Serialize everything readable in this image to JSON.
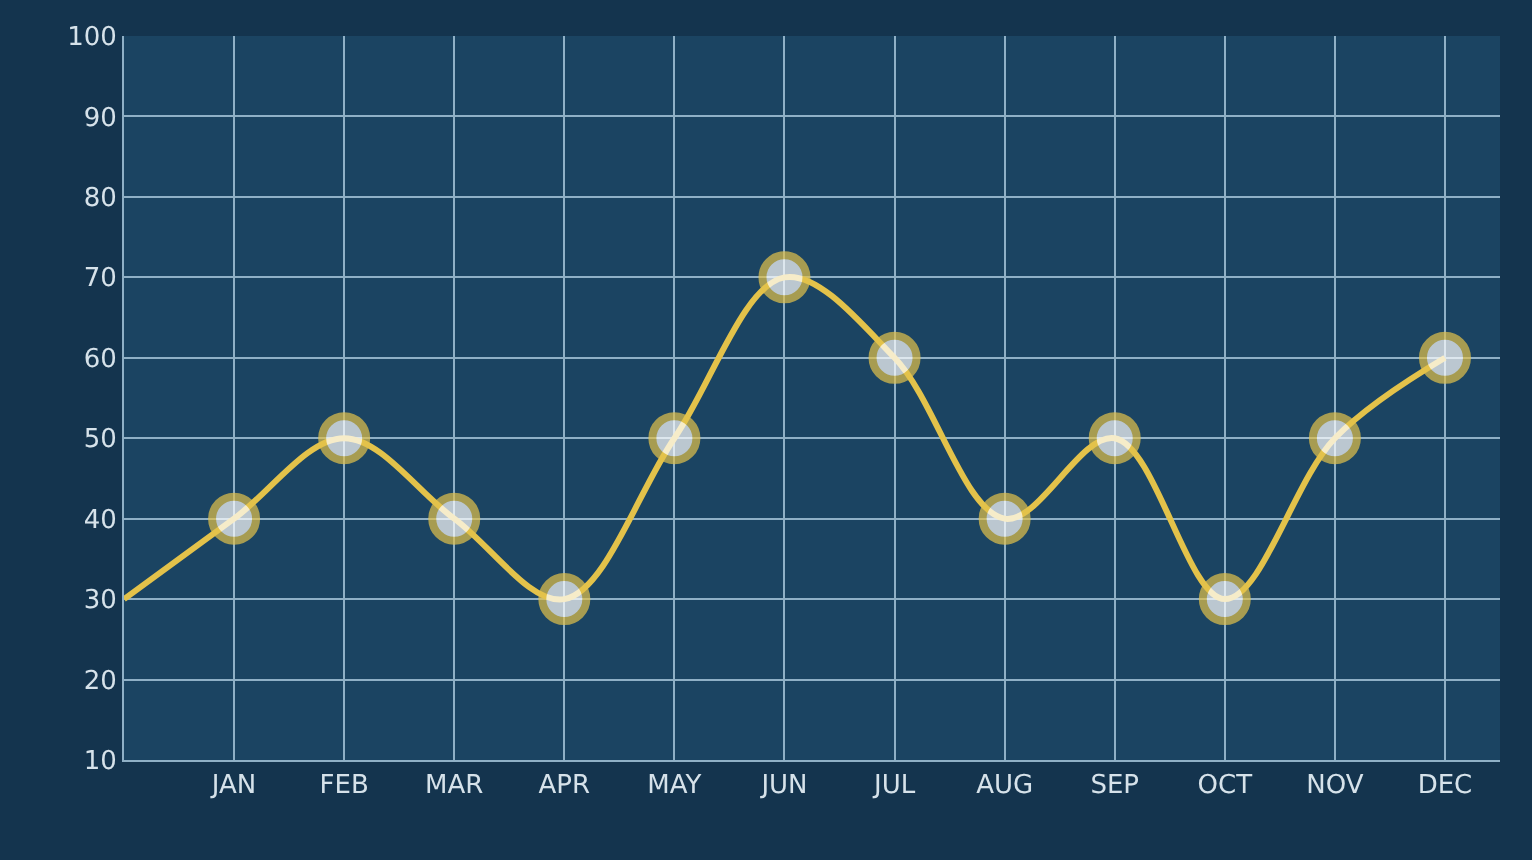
{
  "chart_data": {
    "type": "line",
    "categories": [
      null,
      "JAN",
      "FEB",
      "MAR",
      "APR",
      "MAY",
      "JUN",
      "JUL",
      "AUG",
      "SEP",
      "OCT",
      "NOV",
      "DEC"
    ],
    "series": [
      {
        "color": "#e3c24a",
        "values": [
          30,
          40,
          50,
          40,
          30,
          50,
          70,
          60,
          40,
          50,
          30,
          50,
          60
        ]
      }
    ],
    "ylim": [
      10,
      100
    ],
    "yticks": [
      10,
      20,
      30,
      40,
      50,
      60,
      70,
      80,
      90,
      100
    ],
    "grid": true,
    "marker": "circle",
    "line_style": "solid"
  }
}
